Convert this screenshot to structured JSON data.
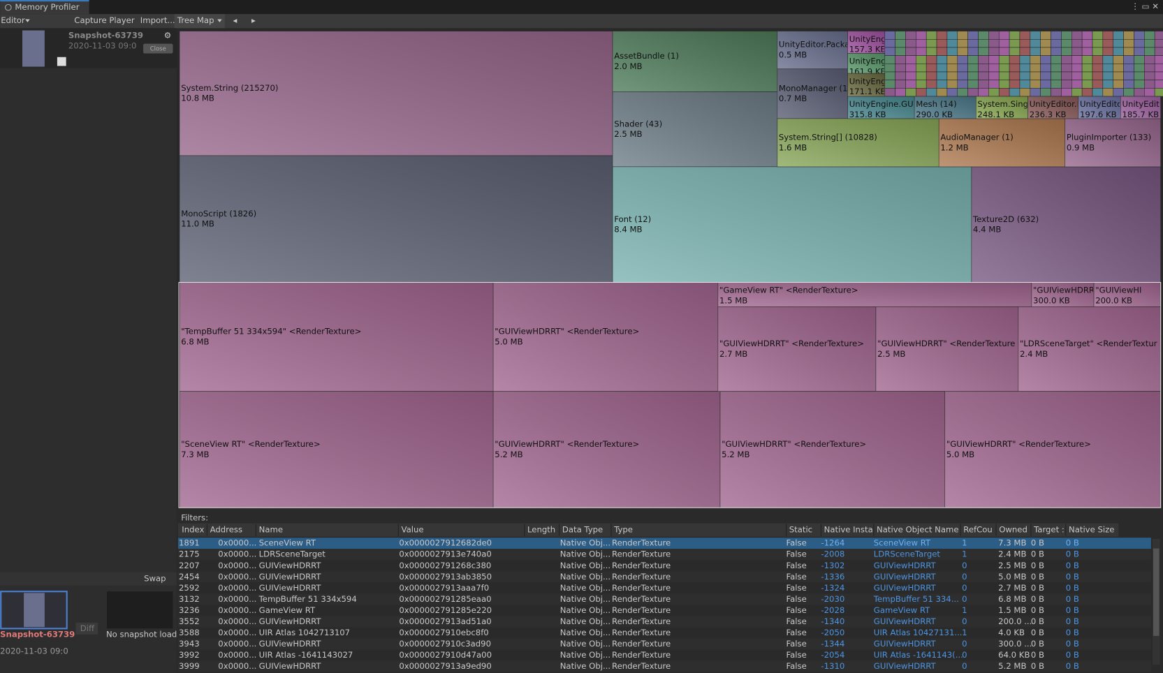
{
  "window": {
    "title": "Memory Profiler"
  },
  "toolbar": {
    "editor": "Editor",
    "capture": "Capture Player",
    "import": "Import...",
    "view": "Tree Map"
  },
  "snapshot_a": {
    "name": "Snapshot-63739",
    "date": "2020-11-03 09:0",
    "close": "Close"
  },
  "compare": {
    "swap": "Swap",
    "diff": "Diff",
    "name": "Snapshot-63739",
    "date": "2020-11-03 09:0",
    "empty": "No snapshot loaded"
  },
  "treemap": {
    "cells": [
      {
        "label": "System.String (215270)",
        "size": "10.8 MB"
      },
      {
        "label": "MonoScript (1826)",
        "size": "11.0 MB"
      },
      {
        "label": "AssetBundle (1)",
        "size": "2.0 MB"
      },
      {
        "label": "Shader (43)",
        "size": "2.5 MB"
      },
      {
        "label": "Font (12)",
        "size": "8.4 MB"
      },
      {
        "label": "Texture2D (632)",
        "size": "4.4 MB"
      },
      {
        "label": "UnityEditor.Packa",
        "size": "0.5 MB"
      },
      {
        "label": "MonoManager (1",
        "size": "0.7 MB"
      },
      {
        "label": "System.String[] (10828)",
        "size": "1.6 MB"
      },
      {
        "label": "AudioManager (1)",
        "size": "1.2 MB"
      },
      {
        "label": "PluginImporter (133)",
        "size": "0.9 MB"
      },
      {
        "label": "UnityEngine.GUI",
        "size": "315.8 KB"
      },
      {
        "label": "Mesh (14)",
        "size": "290.0 KB"
      },
      {
        "label": "System.Sing",
        "size": "248.1 KB"
      },
      {
        "label": "UnityEditor.I",
        "size": "236.3 KB"
      },
      {
        "label": "UnityEdito",
        "size": "197.6 KB"
      },
      {
        "label": "UnityEdit",
        "size": "185.7 KB"
      },
      {
        "label": "UnityEng",
        "size": "157.3 KB"
      },
      {
        "label": "UnityEng",
        "size": "161.9 KB"
      },
      {
        "label": "UnityEng",
        "size": "171.1 KB"
      },
      {
        "label": "\"TempBuffer 51 334x594\" <RenderTexture>",
        "size": "6.8 MB"
      },
      {
        "label": "\"SceneView RT\" <RenderTexture>",
        "size": "7.3 MB"
      },
      {
        "label": "\"GUIViewHDRRT\" <RenderTexture>",
        "size": "5.0 MB"
      },
      {
        "label": "\"GUIViewHDRRT\" <RenderTexture>",
        "size": "5.2 MB"
      },
      {
        "label": "\"GameView RT\" <RenderTexture>",
        "size": "1.5 MB"
      },
      {
        "label": "\"GUIViewHDRRT\"",
        "size": "300.0 KB"
      },
      {
        "label": "\"GUIViewHI",
        "size": "200.0 KB"
      },
      {
        "label": "\"GUIViewHDRRT\" <RenderTexture>",
        "size": "2.7 MB"
      },
      {
        "label": "\"GUIViewHDRRT\" <RenderTexture",
        "size": "2.5 MB"
      },
      {
        "label": "\"LDRSceneTarget\" <RenderTextur",
        "size": "2.4 MB"
      },
      {
        "label": "\"GUIViewHDRRT\" <RenderTexture>",
        "size": "5.2 MB"
      },
      {
        "label": "\"GUIViewHDRRT\" <RenderTexture>",
        "size": "5.0 MB"
      }
    ]
  },
  "table": {
    "filters": "Filters:",
    "columns": [
      "Index",
      "Address",
      "Name",
      "Value",
      "Length",
      "Data Type",
      "Type",
      "Static",
      "Native Insta",
      "Native Object Name",
      "RefCou",
      "Owned",
      "Target :",
      "Native Size"
    ],
    "rows": [
      {
        "index": "1891",
        "address": "0x0000...",
        "name": "SceneView RT",
        "value": "0x0000027912682de0",
        "data_type": "Native Obj...",
        "type": "RenderTexture",
        "static": "False",
        "native_instance": "-1264",
        "native_name": "SceneView RT",
        "refcount": "1",
        "owned": "7.3 MB",
        "target": "0 B",
        "native_size": "0 B"
      },
      {
        "index": "2175",
        "address": "0x0000...",
        "name": "LDRSceneTarget",
        "value": "0x0000027913e740a0",
        "data_type": "Native Obj...",
        "type": "RenderTexture",
        "static": "False",
        "native_instance": "-2008",
        "native_name": "LDRSceneTarget",
        "refcount": "1",
        "owned": "2.4 MB",
        "target": "0 B",
        "native_size": "0 B"
      },
      {
        "index": "2207",
        "address": "0x0000...",
        "name": "GUIViewHDRRT",
        "value": "0x000002791268c380",
        "data_type": "Native Obj...",
        "type": "RenderTexture",
        "static": "False",
        "native_instance": "-1302",
        "native_name": "GUIViewHDRRT",
        "refcount": "0",
        "owned": "2.5 MB",
        "target": "0 B",
        "native_size": "0 B"
      },
      {
        "index": "2454",
        "address": "0x0000...",
        "name": "GUIViewHDRRT",
        "value": "0x0000027913ab3850",
        "data_type": "Native Obj...",
        "type": "RenderTexture",
        "static": "False",
        "native_instance": "-1336",
        "native_name": "GUIViewHDRRT",
        "refcount": "0",
        "owned": "5.0 MB",
        "target": "0 B",
        "native_size": "0 B"
      },
      {
        "index": "2592",
        "address": "0x0000...",
        "name": "GUIViewHDRRT",
        "value": "0x0000027913aaa7f0",
        "data_type": "Native Obj...",
        "type": "RenderTexture",
        "static": "False",
        "native_instance": "-1324",
        "native_name": "GUIViewHDRRT",
        "refcount": "0",
        "owned": "2.7 MB",
        "target": "0 B",
        "native_size": "0 B"
      },
      {
        "index": "3132",
        "address": "0x0000...",
        "name": "TempBuffer 51 334x594",
        "value": "0x000002791285eaa0",
        "data_type": "Native Obj...",
        "type": "RenderTexture",
        "static": "False",
        "native_instance": "-2030",
        "native_name": "TempBuffer 51 334...",
        "refcount": "0",
        "owned": "6.8 MB",
        "target": "0 B",
        "native_size": "0 B"
      },
      {
        "index": "3236",
        "address": "0x0000...",
        "name": "GameView RT",
        "value": "0x000002791285e220",
        "data_type": "Native Obj...",
        "type": "RenderTexture",
        "static": "False",
        "native_instance": "-2028",
        "native_name": "GameView RT",
        "refcount": "1",
        "owned": "1.5 MB",
        "target": "0 B",
        "native_size": "0 B"
      },
      {
        "index": "3552",
        "address": "0x0000...",
        "name": "GUIViewHDRRT",
        "value": "0x0000027913ad51a0",
        "data_type": "Native Obj...",
        "type": "RenderTexture",
        "static": "False",
        "native_instance": "-1340",
        "native_name": "GUIViewHDRRT",
        "refcount": "0",
        "owned": "200.0 ...",
        "target": "0 B",
        "native_size": "0 B"
      },
      {
        "index": "3588",
        "address": "0x0000...",
        "name": "UIR Atlas 1042713107",
        "value": "0x0000027910ebc8f0",
        "data_type": "Native Obj...",
        "type": "RenderTexture",
        "static": "False",
        "native_instance": "-2050",
        "native_name": "UIR Atlas 10427131...",
        "refcount": "1",
        "owned": "4.0 KB",
        "target": "0 B",
        "native_size": "0 B"
      },
      {
        "index": "3943",
        "address": "0x0000...",
        "name": "GUIViewHDRRT",
        "value": "0x0000027910c3ad90",
        "data_type": "Native Obj...",
        "type": "RenderTexture",
        "static": "False",
        "native_instance": "-1344",
        "native_name": "GUIViewHDRRT",
        "refcount": "0",
        "owned": "300.0 ...",
        "target": "0 B",
        "native_size": "0 B"
      },
      {
        "index": "3992",
        "address": "0x0000...",
        "name": "UIR Atlas -1641143027",
        "value": "0x0000027910d47a00",
        "data_type": "Native Obj...",
        "type": "RenderTexture",
        "static": "False",
        "native_instance": "-2054",
        "native_name": "UIR Atlas -1641143(...",
        "refcount": "0",
        "owned": "64.0 KB",
        "target": "0 B",
        "native_size": "0 B"
      },
      {
        "index": "3999",
        "address": "0x0000...",
        "name": "GUIViewHDRRT",
        "value": "0x0000027913a9ed90",
        "data_type": "Native Obj...",
        "type": "RenderTexture",
        "static": "False",
        "native_instance": "-1310",
        "native_name": "GUIViewHDRRT",
        "refcount": "0",
        "owned": "5.2 MB",
        "target": "0 B",
        "native_size": "0 B"
      }
    ]
  }
}
